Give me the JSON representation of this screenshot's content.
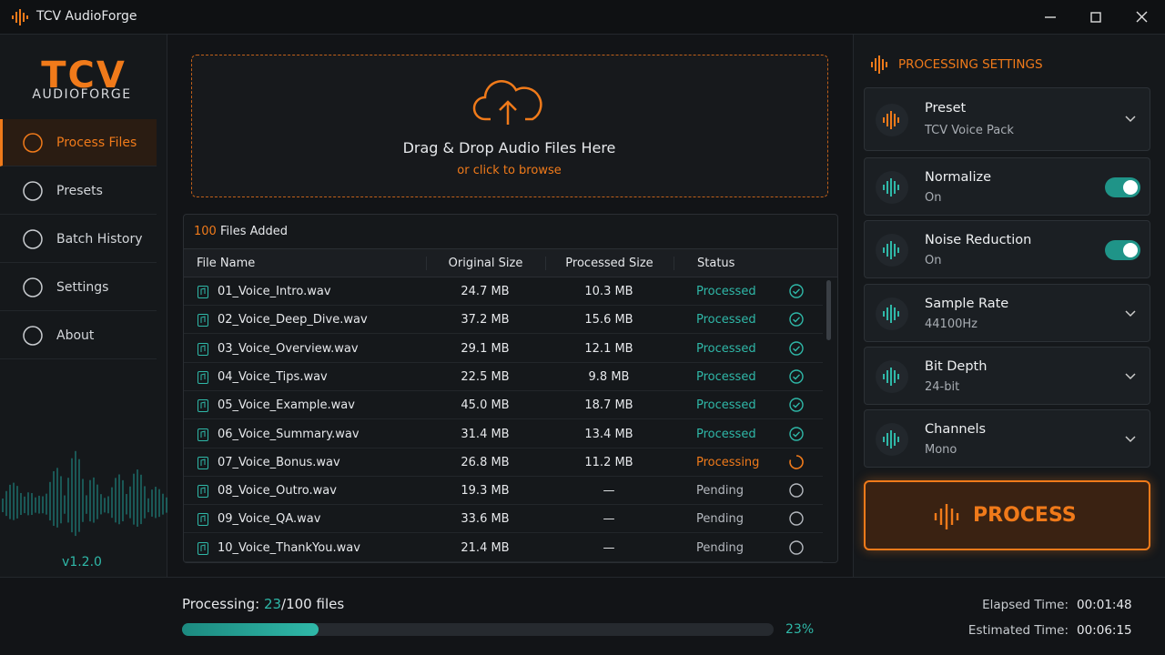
{
  "app": {
    "title": "TCV AudioForge"
  },
  "sidebar": {
    "logo_top": "TCV",
    "logo_bottom": "AUDIOFORGE",
    "nav": [
      {
        "label": "Process Files",
        "active": true
      },
      {
        "label": "Presets",
        "active": false
      },
      {
        "label": "Batch History",
        "active": false
      },
      {
        "label": "Settings",
        "active": false
      },
      {
        "label": "About",
        "active": false
      }
    ],
    "version": "v1.2.0"
  },
  "dropzone": {
    "title": "Drag & Drop Audio Files Here",
    "subtitle": "or click to browse"
  },
  "files": {
    "count": 100,
    "count_label": "Files Added",
    "columns": [
      "File Name",
      "Original Size",
      "Processed Size",
      "Status"
    ],
    "rows": [
      {
        "name": "01_Voice_Intro.wav",
        "original": "24.7 MB",
        "processed": "10.3 MB",
        "status": "Processed",
        "icon": "check",
        "color": "#2fb8a8"
      },
      {
        "name": "02_Voice_Deep_Dive.wav",
        "original": "37.2 MB",
        "processed": "15.6 MB",
        "status": "Processed",
        "icon": "check",
        "color": "#2fb8a8"
      },
      {
        "name": "03_Voice_Overview.wav",
        "original": "29.1 MB",
        "processed": "12.1 MB",
        "status": "Processed",
        "icon": "check",
        "color": "#2fb8a8"
      },
      {
        "name": "04_Voice_Tips.wav",
        "original": "22.5 MB",
        "processed": "9.8 MB",
        "status": "Processed",
        "icon": "check",
        "color": "#2fb8a8"
      },
      {
        "name": "05_Voice_Example.wav",
        "original": "45.0 MB",
        "processed": "18.7 MB",
        "status": "Processed",
        "icon": "check",
        "color": "#2fb8a8"
      },
      {
        "name": "06_Voice_Summary.wav",
        "original": "31.4 MB",
        "processed": "13.4 MB",
        "status": "Processed",
        "icon": "check",
        "color": "#2fb8a8"
      },
      {
        "name": "07_Voice_Bonus.wav",
        "original": "26.8 MB",
        "processed": "11.2 MB",
        "status": "Processing",
        "icon": "spinner",
        "color": "#f07a1a"
      },
      {
        "name": "08_Voice_Outro.wav",
        "original": "19.3 MB",
        "processed": "—",
        "status": "Pending",
        "icon": "circle",
        "color": "#b5b9bf"
      },
      {
        "name": "09_Voice_QA.wav",
        "original": "33.6 MB",
        "processed": "—",
        "status": "Pending",
        "icon": "circle",
        "color": "#b5b9bf"
      },
      {
        "name": "10_Voice_ThankYou.wav",
        "original": "21.4 MB",
        "processed": "—",
        "status": "Pending",
        "icon": "circle",
        "color": "#b5b9bf"
      }
    ]
  },
  "settings": {
    "title": "PROCESSING SETTINGS",
    "items": [
      {
        "label": "Preset",
        "value": "TCV Voice Pack",
        "control": "dropdown",
        "icon_color": "#f07a1a"
      },
      {
        "label": "Normalize",
        "value": "On",
        "control": "toggle",
        "on": true,
        "icon_color": "#2fb8a8"
      },
      {
        "label": "Noise Reduction",
        "value": "On",
        "control": "toggle",
        "on": true,
        "icon_color": "#2fb8a8"
      },
      {
        "label": "Sample Rate",
        "value": "44100Hz",
        "control": "dropdown",
        "icon_color": "#2fb8a8"
      },
      {
        "label": "Bit Depth",
        "value": "24-bit",
        "control": "dropdown",
        "icon_color": "#2fb8a8"
      },
      {
        "label": "Channels",
        "value": "Mono",
        "control": "dropdown",
        "icon_color": "#2fb8a8"
      }
    ],
    "button": "PROCESS"
  },
  "progress": {
    "label": "Processing:",
    "done": 23,
    "separator": "/",
    "total": 100,
    "unit": "files",
    "percent": {
      "value": 23,
      "label": "23%"
    },
    "elapsed_label": "Elapsed Time:",
    "elapsed": "00:01:48",
    "estimated_label": "Estimated Time:",
    "estimated": "00:06:15"
  }
}
